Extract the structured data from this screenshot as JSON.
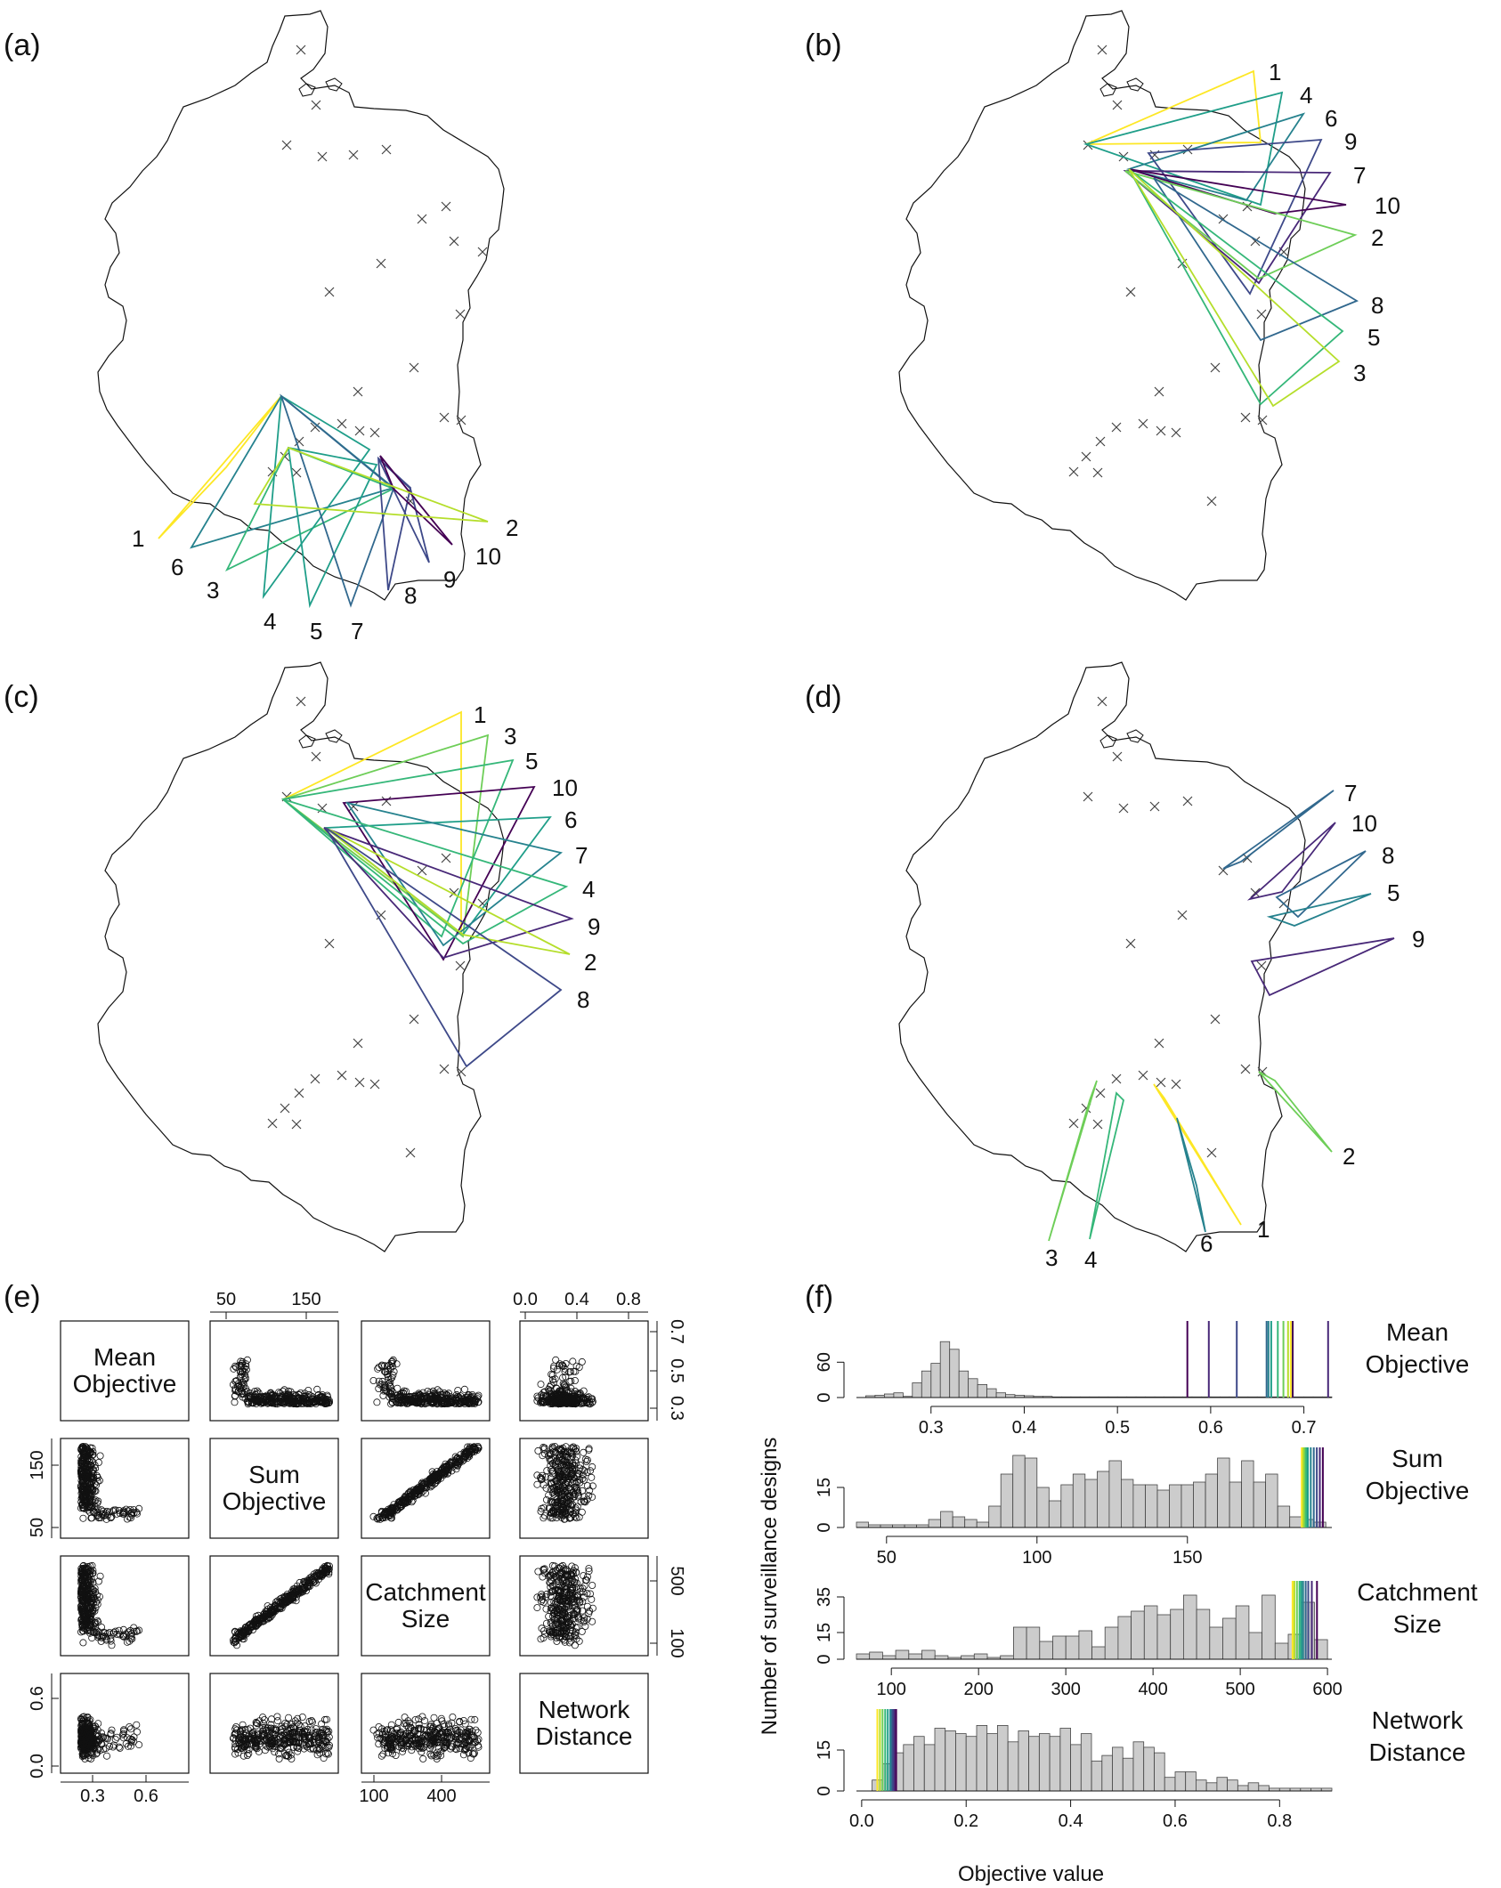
{
  "panels": {
    "a": "(a)",
    "b": "(b)",
    "c": "(c)",
    "d": "(d)",
    "e": "(e)",
    "f": "(f)"
  },
  "maps": [
    {
      "id": "a",
      "designs": [
        "1",
        "6",
        "3",
        "4",
        "5",
        "7",
        "8",
        "9",
        "10",
        "2"
      ]
    },
    {
      "id": "b",
      "designs": [
        "1",
        "4",
        "6",
        "9",
        "7",
        "10",
        "2",
        "8",
        "5",
        "3"
      ]
    },
    {
      "id": "c",
      "designs": [
        "1",
        "3",
        "5",
        "10",
        "6",
        "7",
        "4",
        "9",
        "2",
        "8"
      ]
    },
    {
      "id": "d",
      "designs": [
        "7",
        "10",
        "8",
        "5",
        "9",
        "2",
        "1",
        "6",
        "3",
        "4"
      ]
    }
  ],
  "colors": {
    "viridis": [
      "#fde725",
      "#b5de2b",
      "#6ece58",
      "#35b779",
      "#1f9e89",
      "#26828e",
      "#31688e",
      "#3e4989",
      "#482878",
      "#440154"
    ],
    "hist_fill": "#cccccc",
    "outline": "#111111"
  },
  "chart_data": [
    {
      "type": "scatter",
      "panel": "(e)",
      "variables": [
        {
          "label_lines": [
            "Mean",
            "Objective"
          ],
          "ticks": [
            "0.3",
            "0.5",
            "0.7"
          ],
          "range": [
            0.2,
            0.75
          ]
        },
        {
          "label_lines": [
            "Sum",
            "Objective"
          ],
          "ticks": [
            "50",
            "150"
          ],
          "range": [
            35,
            200
          ]
        },
        {
          "label_lines": [
            "Catchment",
            "Size"
          ],
          "ticks": [
            "100",
            "500"
          ],
          "range": [
            50,
            620
          ]
        },
        {
          "label_lines": [
            "Network",
            "Distance"
          ],
          "ticks": [
            "0.0",
            "0.4",
            "0.8"
          ],
          "range": [
            0,
            0.9
          ]
        }
      ],
      "top_axis": {
        "col1": [
          "50",
          "150"
        ],
        "col3": [
          "0.0",
          "0.4",
          "0.8"
        ]
      },
      "bottom_axis": {
        "col0": [
          "0.3",
          "0.6"
        ],
        "col2": [
          "100",
          "400"
        ]
      },
      "right_axis": {
        "row0": [
          "0.3",
          "0.5",
          "0.7"
        ],
        "row2": [
          "100",
          "500"
        ]
      },
      "left_axis": {
        "row1": [
          "50",
          "150"
        ],
        "row3": [
          "0.0",
          "0.6"
        ]
      }
    },
    {
      "type": "bar",
      "panel": "(f)",
      "ylabel": "Number of surveillance designs",
      "xlabel": "Objective value",
      "rows": [
        {
          "label_lines": [
            "Mean",
            "Objective"
          ],
          "x_ticks": [
            "0.3",
            "0.4",
            "0.5",
            "0.6",
            "0.7"
          ],
          "tick_values": [
            0.3,
            0.4,
            0.5,
            0.6,
            0.7
          ],
          "range": [
            0.22,
            0.73
          ],
          "y_ticks": [
            "0",
            "60"
          ],
          "y_tick_values": [
            0,
            60
          ],
          "ymax": 130,
          "bin_width": 0.01,
          "bin_start": 0.23,
          "counts": [
            3,
            4,
            6,
            8,
            2,
            25,
            45,
            58,
            95,
            82,
            45,
            32,
            22,
            15,
            8,
            5,
            4,
            3,
            2,
            2,
            1,
            1,
            1,
            1,
            1,
            1,
            1,
            1,
            1,
            1,
            1,
            1,
            1,
            1,
            1,
            1,
            1,
            1,
            1,
            1,
            1,
            1,
            1,
            1,
            1,
            1,
            1,
            1,
            1,
            1
          ],
          "design_lines": [
            0.575,
            0.598,
            0.628,
            0.66,
            0.662,
            0.665,
            0.672,
            0.678,
            0.683,
            0.686,
            0.688,
            0.726
          ]
        },
        {
          "label_lines": [
            "Sum",
            "Objective"
          ],
          "x_ticks": [
            "50",
            "100",
            "150"
          ],
          "tick_values": [
            50,
            100,
            150
          ],
          "range": [
            40,
            198
          ],
          "y_ticks": [
            "0",
            "15"
          ],
          "y_tick_values": [
            0,
            15
          ],
          "ymax": 30,
          "bin_width": 4,
          "bin_start": 40,
          "counts": [
            2,
            1,
            1,
            1,
            1,
            1,
            3,
            6,
            4,
            3,
            2,
            8,
            20,
            27,
            26,
            15,
            10,
            16,
            20,
            18,
            21,
            25,
            18,
            16,
            16,
            14,
            16,
            16,
            17,
            20,
            26,
            17,
            25,
            17,
            20,
            8,
            4,
            3,
            2
          ],
          "design_lines": [
            188,
            188.5,
            189,
            189.5,
            190,
            191,
            192,
            193,
            194,
            195
          ]
        },
        {
          "label_lines": [
            "Catchment",
            "Size"
          ],
          "x_ticks": [
            "100",
            "200",
            "300",
            "400",
            "500",
            "600"
          ],
          "tick_values": [
            100,
            200,
            300,
            400,
            500,
            600
          ],
          "range": [
            60,
            605
          ],
          "y_ticks": [
            "0",
            "15",
            "35"
          ],
          "y_tick_values": [
            0,
            15,
            35
          ],
          "ymax": 44,
          "bin_width": 15,
          "bin_start": 60,
          "counts": [
            3,
            4,
            2,
            5,
            3,
            5,
            2,
            1,
            2,
            3,
            1,
            2,
            18,
            18,
            10,
            13,
            13,
            16,
            7,
            18,
            24,
            27,
            30,
            25,
            28,
            36,
            28,
            18,
            23,
            30,
            15,
            36,
            9,
            14,
            32,
            11
          ],
          "design_lines": [
            560,
            562,
            565,
            568,
            570,
            572,
            575,
            578,
            582,
            588
          ]
        },
        {
          "label_lines": [
            "Network",
            "Distance"
          ],
          "x_ticks": [
            "0.0",
            "0.2",
            "0.4",
            "0.6",
            "0.8"
          ],
          "tick_values": [
            0.0,
            0.2,
            0.4,
            0.6,
            0.8
          ],
          "range": [
            -0.01,
            0.9
          ],
          "y_ticks": [
            "0",
            "15"
          ],
          "y_tick_values": [
            0,
            15
          ],
          "ymax": 30,
          "bin_width": 0.02,
          "bin_start": 0.02,
          "counts": [
            4,
            10,
            14,
            17,
            20,
            17,
            23,
            22,
            21,
            20,
            24,
            21,
            24,
            18,
            22,
            20,
            21,
            20,
            23,
            17,
            21,
            11,
            13,
            16,
            12,
            18,
            16,
            14,
            5,
            7,
            7,
            4,
            3,
            5,
            4,
            2,
            3,
            2,
            1,
            1,
            1,
            1,
            1,
            1
          ],
          "design_lines": [
            0.03,
            0.035,
            0.04,
            0.045,
            0.05,
            0.055,
            0.058,
            0.06,
            0.063,
            0.066
          ]
        }
      ]
    }
  ]
}
